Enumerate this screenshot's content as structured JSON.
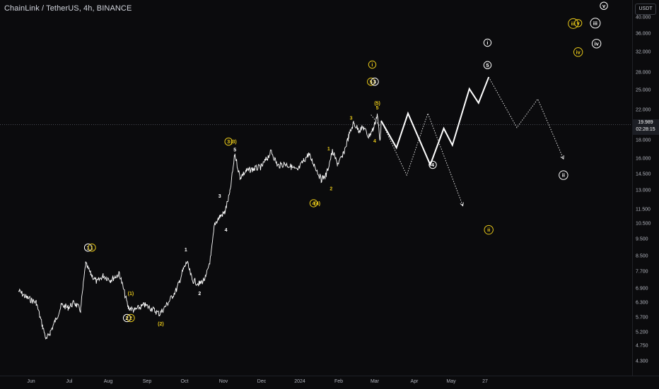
{
  "title": "ChainLink / TetherUS, 4h, BINANCE",
  "currency_label": "USDT",
  "last_price": "19.989",
  "countdown": "02:28:15",
  "colors": {
    "background": "#0b0b0d",
    "price": "#ffffff",
    "wave_white": "#ffffff",
    "wave_yellow": "#e6c619",
    "projection": "#ffffff"
  },
  "price_scale": {
    "log": true,
    "ticks": [
      "40.000",
      "36.000",
      "32.000",
      "28.000",
      "25.000",
      "22.000",
      "18.000",
      "16.000",
      "14.500",
      "13.000",
      "11.500",
      "10.500",
      "9.500",
      "8.500",
      "7.700",
      "6.900",
      "6.300",
      "5.700",
      "5.200",
      "4.750",
      "4.300"
    ]
  },
  "time_scale": {
    "ticks": [
      "Jun",
      "Jul",
      "Aug",
      "Sep",
      "Oct",
      "Nov",
      "Dec",
      "2024",
      "Feb",
      "Mar",
      "Apr",
      "May",
      "27"
    ]
  },
  "chart_data": {
    "type": "line",
    "title": "ChainLink / TetherUS, 4h, BINANCE",
    "y_scale": "log",
    "ylim": [
      4.0,
      44.0
    ],
    "series": [
      {
        "values": [
          [
            "2023-05-20",
            6.8
          ],
          [
            "2023-05-28",
            6.5
          ],
          [
            "2023-06-05",
            6.3
          ],
          [
            "2023-06-10",
            5.4
          ],
          [
            "2023-06-13",
            4.95
          ],
          [
            "2023-06-16",
            5.2
          ],
          [
            "2023-06-20",
            5.6
          ],
          [
            "2023-06-25",
            6.2
          ],
          [
            "2023-06-30",
            6.1
          ],
          [
            "2023-07-05",
            6.3
          ],
          [
            "2023-07-10",
            6.0
          ],
          [
            "2023-07-14",
            8.1
          ],
          [
            "2023-07-18",
            7.6
          ],
          [
            "2023-07-23",
            7.2
          ],
          [
            "2023-07-28",
            7.5
          ],
          [
            "2023-08-03",
            7.3
          ],
          [
            "2023-08-10",
            7.6
          ],
          [
            "2023-08-17",
            6.1
          ],
          [
            "2023-08-22",
            6.0
          ],
          [
            "2023-08-30",
            6.2
          ],
          [
            "2023-09-05",
            6.05
          ],
          [
            "2023-09-11",
            5.85
          ],
          [
            "2023-09-18",
            6.3
          ],
          [
            "2023-09-25",
            6.9
          ],
          [
            "2023-09-30",
            7.8
          ],
          [
            "2023-10-03",
            8.2
          ],
          [
            "2023-10-07",
            7.3
          ],
          [
            "2023-10-13",
            7.1
          ],
          [
            "2023-10-18",
            7.4
          ],
          [
            "2023-10-22",
            8.5
          ],
          [
            "2023-10-25",
            10.5
          ],
          [
            "2023-10-29",
            11.0
          ],
          [
            "2023-11-02",
            11.3
          ],
          [
            "2023-11-06",
            12.8
          ],
          [
            "2023-11-10",
            16.5
          ],
          [
            "2023-11-14",
            14.2
          ],
          [
            "2023-11-19",
            14.8
          ],
          [
            "2023-11-25",
            15.0
          ],
          [
            "2023-12-01",
            15.2
          ],
          [
            "2023-12-05",
            16.0
          ],
          [
            "2023-12-09",
            16.8
          ],
          [
            "2023-12-14",
            15.3
          ],
          [
            "2023-12-20",
            15.5
          ],
          [
            "2023-12-25",
            15.2
          ],
          [
            "2023-12-30",
            14.8
          ],
          [
            "2024-01-04",
            15.8
          ],
          [
            "2024-01-08",
            16.5
          ],
          [
            "2024-01-13",
            15.3
          ],
          [
            "2024-01-18",
            14.0
          ],
          [
            "2024-01-22",
            14.4
          ],
          [
            "2024-01-27",
            16.8
          ],
          [
            "2024-01-31",
            15.5
          ],
          [
            "2024-02-04",
            16.2
          ],
          [
            "2024-02-09",
            18.5
          ],
          [
            "2024-02-13",
            20.2
          ],
          [
            "2024-02-17",
            19.3
          ],
          [
            "2024-02-21",
            19.6
          ],
          [
            "2024-02-25",
            18.5
          ],
          [
            "2024-02-29",
            19.5
          ],
          [
            "2024-03-03",
            21.4
          ],
          [
            "2024-03-05",
            18.0
          ],
          [
            "2024-03-06",
            19.989
          ]
        ]
      }
    ],
    "projections": [
      {
        "style": "solid",
        "points": [
          [
            "2024-03-06",
            20.5
          ],
          [
            "2024-03-18",
            17.2
          ],
          [
            "2024-03-27",
            21.5
          ],
          [
            "2024-04-14",
            15.4
          ],
          [
            "2024-04-25",
            19.5
          ],
          [
            "2024-05-02",
            17.5
          ],
          [
            "2024-05-15",
            25.2
          ],
          [
            "2024-05-22",
            23.0
          ],
          [
            "2024-05-30",
            27.2
          ]
        ]
      },
      {
        "style": "dotted",
        "points": [
          [
            "2024-05-30",
            27.2
          ],
          [
            "2024-06-22",
            19.6
          ],
          [
            "2024-07-09",
            23.6
          ],
          [
            "2024-07-30",
            16.0
          ]
        ]
      },
      {
        "style": "dotted",
        "points": [
          [
            "2024-03-06",
            20.5
          ],
          [
            "2024-03-26",
            14.4
          ],
          [
            "2024-04-12",
            21.5
          ],
          [
            "2024-05-10",
            11.8
          ]
        ]
      },
      {
        "style": "dotted",
        "points": [
          [
            "2024-02-27",
            21.3
          ],
          [
            "2024-03-05",
            19.8
          ]
        ]
      }
    ],
    "wave_labels": [
      {
        "text": "1",
        "circled": true,
        "color": "white",
        "x": "2023-07-16",
        "y": 9.0
      },
      {
        "text": "1",
        "circled": true,
        "color": "yellow",
        "x": "2023-07-19",
        "y": 9.0
      },
      {
        "text": "2",
        "circled": true,
        "color": "white",
        "x": "2023-08-16",
        "y": 5.7
      },
      {
        "text": "2",
        "circled": true,
        "color": "yellow",
        "x": "2023-08-19",
        "y": 5.7
      },
      {
        "text": "(1)",
        "circled": false,
        "color": "yellow",
        "x": "2023-08-19",
        "y": 6.7
      },
      {
        "text": "(2)",
        "circled": false,
        "color": "yellow",
        "x": "2023-09-12",
        "y": 5.5
      },
      {
        "text": "1",
        "circled": false,
        "color": "white",
        "x": "2023-10-02",
        "y": 8.9
      },
      {
        "text": "2",
        "circled": false,
        "color": "white",
        "x": "2023-10-13",
        "y": 6.7
      },
      {
        "text": "3",
        "circled": false,
        "color": "white",
        "x": "2023-10-29",
        "y": 12.6
      },
      {
        "text": "4",
        "circled": false,
        "color": "white",
        "x": "2023-11-03",
        "y": 10.1
      },
      {
        "text": "3",
        "circled": true,
        "color": "yellow",
        "x": "2023-11-05",
        "y": 17.9
      },
      {
        "text": "(3)",
        "circled": false,
        "color": "yellow",
        "x": "2023-11-09",
        "y": 17.9
      },
      {
        "text": "5",
        "circled": false,
        "color": "white",
        "x": "2023-11-10",
        "y": 17.0
      },
      {
        "text": "4",
        "circled": true,
        "color": "yellow",
        "x": "2024-01-12",
        "y": 12.0
      },
      {
        "text": "(4)",
        "circled": false,
        "color": "yellow",
        "x": "2024-01-15",
        "y": 12.0
      },
      {
        "text": "1",
        "circled": false,
        "color": "yellow",
        "x": "2024-01-24",
        "y": 17.1
      },
      {
        "text": "2",
        "circled": false,
        "color": "yellow",
        "x": "2024-01-26",
        "y": 13.2
      },
      {
        "text": "3",
        "circled": false,
        "color": "yellow",
        "x": "2024-02-11",
        "y": 20.9
      },
      {
        "text": "i",
        "circled": true,
        "color": "yellow",
        "x": "2024-02-28",
        "y": 29.5
      },
      {
        "text": "5",
        "circled": true,
        "color": "yellow",
        "x": "2024-02-27",
        "y": 26.4
      },
      {
        "text": "3",
        "circled": true,
        "color": "white",
        "x": "2024-03-01",
        "y": 26.4
      },
      {
        "text": "(5)",
        "circled": false,
        "color": "yellow",
        "x": "2024-03-03",
        "y": 23.0
      },
      {
        "text": "5",
        "circled": false,
        "color": "yellow",
        "x": "2024-03-03",
        "y": 22.3
      },
      {
        "text": "4",
        "circled": false,
        "color": "yellow",
        "x": "2024-03-01",
        "y": 18.0
      },
      {
        "text": "4",
        "circled": true,
        "color": "white",
        "x": "2024-04-16",
        "y": 15.4
      },
      {
        "text": "i",
        "circled": true,
        "color": "white",
        "x": "2024-05-29",
        "y": 34.0
      },
      {
        "text": "5",
        "circled": true,
        "color": "white",
        "x": "2024-05-29",
        "y": 29.4
      },
      {
        "text": "ii",
        "circled": true,
        "color": "white",
        "x": "2024-07-30",
        "y": 14.4
      },
      {
        "text": "ii",
        "circled": true,
        "color": "yellow",
        "x": "2024-05-30",
        "y": 10.1
      },
      {
        "text": "iii",
        "circled": true,
        "color": "yellow",
        "x": "2024-08-07",
        "y": 38.5
      },
      {
        "text": "v",
        "circled": true,
        "color": "yellow",
        "x": "2024-08-11",
        "y": 38.6
      },
      {
        "text": "iii",
        "circled": true,
        "color": "white",
        "x": "2024-08-25",
        "y": 38.6
      },
      {
        "text": "v",
        "circled": true,
        "color": "white",
        "x": "2024-09-01",
        "y": 43.2
      },
      {
        "text": "iv",
        "circled": true,
        "color": "yellow",
        "x": "2024-08-11",
        "y": 32.0
      },
      {
        "text": "iv",
        "circled": true,
        "color": "white",
        "x": "2024-08-26",
        "y": 33.8
      }
    ]
  }
}
